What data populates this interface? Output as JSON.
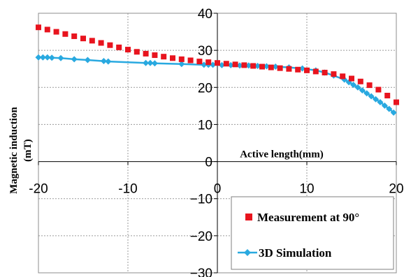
{
  "chart_data": {
    "type": "scatter",
    "title": "",
    "xlabel": "Active length(mm)",
    "ylabel": "Magnetic induction (mT)",
    "ylabel_lines": [
      "Magnetic induction",
      "(mT)"
    ],
    "xlim": [
      -20,
      20
    ],
    "ylim": [
      -30,
      40
    ],
    "x_ticks": [
      -20,
      -10,
      0,
      10,
      20
    ],
    "y_ticks": [
      -30,
      -20,
      -10,
      0,
      10,
      20,
      30,
      40
    ],
    "x_tick_labels": [
      "-20",
      "-10",
      "0",
      "10",
      "20"
    ],
    "y_tick_labels": [
      "−30",
      "−20",
      "−10",
      "0",
      "10",
      "20",
      "30",
      "40"
    ],
    "grid": "dashed",
    "legend_position": "bottom-right",
    "series": [
      {
        "name": "Measurement at 90°",
        "style": "square-markers",
        "color": "#e8141e",
        "x": [
          -20,
          -19,
          -18,
          -17,
          -16,
          -15,
          -14,
          -13,
          -12,
          -11,
          -10,
          -9,
          -8,
          -7,
          -6,
          -5,
          -4,
          -3,
          -2,
          -1,
          0,
          1,
          2,
          3,
          4,
          5,
          6,
          7,
          8,
          9,
          10,
          11,
          12,
          13,
          14,
          15,
          16,
          17,
          18,
          19,
          20
        ],
        "y": [
          36.2,
          35.6,
          35.0,
          34.4,
          33.8,
          33.2,
          32.6,
          32.0,
          31.4,
          30.8,
          30.2,
          29.6,
          29.1,
          28.7,
          28.3,
          27.9,
          27.6,
          27.3,
          27.0,
          26.8,
          26.6,
          26.4,
          26.2,
          26.0,
          25.8,
          25.6,
          25.4,
          25.2,
          25.0,
          24.8,
          24.6,
          24.3,
          24.0,
          23.6,
          23.0,
          22.4,
          21.6,
          20.6,
          19.4,
          17.8,
          16.0
        ]
      },
      {
        "name": "3D Simulation",
        "style": "line-diamond-markers",
        "color": "#29a9e0",
        "x": [
          -20,
          -19.5,
          -19,
          -18.5,
          -17.5,
          -16,
          -14.5,
          -12.7,
          -12.2,
          -8,
          -7.5,
          -7,
          -4,
          -1.5,
          -1,
          -0.5,
          0.5,
          1.5,
          2.5,
          3.5,
          4.5,
          5.5,
          6.5,
          8,
          9.5,
          11,
          12,
          13,
          14.2,
          14.7,
          15.2,
          15.7,
          16.2,
          16.7,
          17.2,
          17.7,
          18.2,
          18.7,
          19.2,
          19.7
        ],
        "y": [
          28.1,
          28.1,
          28.1,
          28.0,
          27.9,
          27.6,
          27.4,
          27.1,
          27.0,
          26.6,
          26.6,
          26.5,
          26.3,
          26.1,
          26.1,
          26.1,
          26.0,
          26.0,
          25.9,
          25.9,
          25.8,
          25.7,
          25.6,
          25.4,
          25.1,
          24.6,
          24.0,
          23.2,
          22.1,
          21.4,
          20.7,
          20.0,
          19.2,
          18.4,
          17.6,
          16.8,
          16.0,
          15.1,
          14.2,
          13.2
        ]
      }
    ]
  }
}
